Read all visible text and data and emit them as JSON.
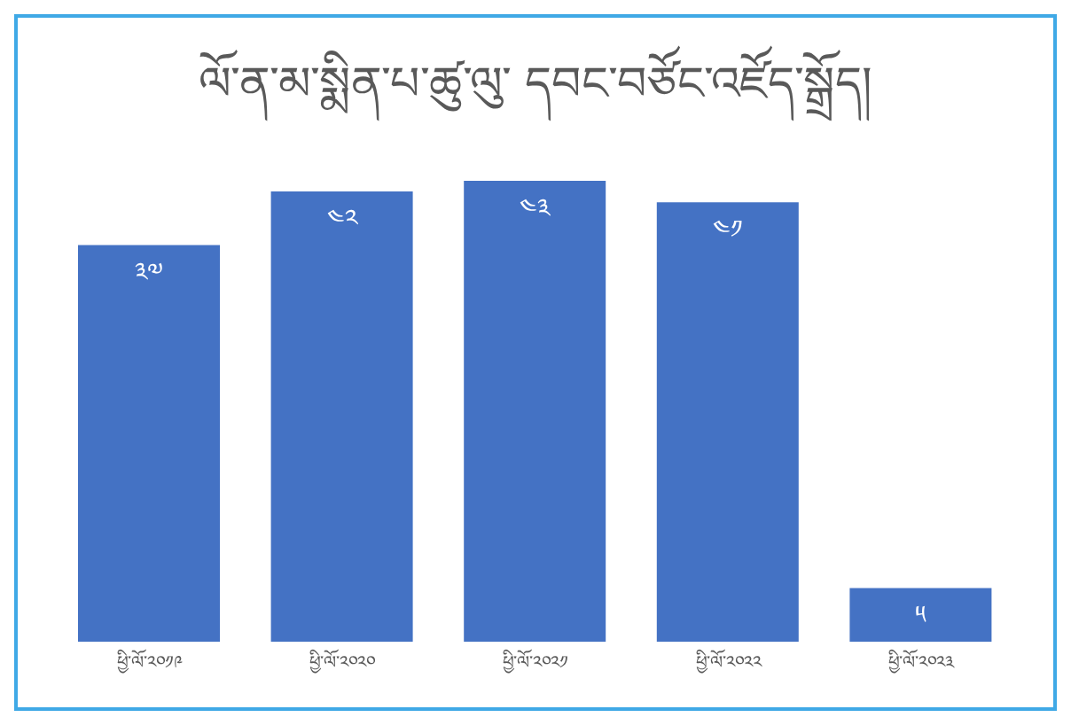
{
  "chart_data": {
    "type": "bar",
    "title": "ལོ་ན་མ་སྨིན་པ་ཚུ་ལུ་  དབང་བཙོང་འཛོད་སྒྲོད།",
    "categories": [
      "ཕྱི་ལོ་༢༠༡༩",
      "ཕྱི་ལོ་༢༠༢༠",
      "ཕྱི་ལོ་༢༠༢༡",
      "ཕྱི་ལོ་༢༠༢༢",
      "ཕྱི་ལོ་༢༠༢༣"
    ],
    "values": [
      37,
      42,
      43,
      41,
      5
    ],
    "value_labels": [
      "༣༧",
      "༤༢",
      "༤༣",
      "༤༡",
      "༥"
    ],
    "color": "#4472c4",
    "grid": false,
    "legend": false
  }
}
